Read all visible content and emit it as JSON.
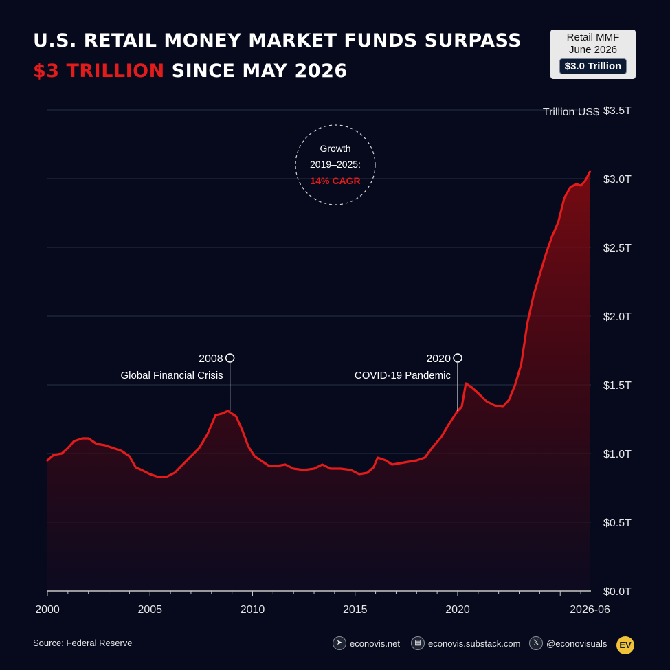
{
  "header": {
    "title_line1": "U.S. RETAIL MONEY MARKET FUNDS SURPASS",
    "title_accent": "$3 TRILLION",
    "title_line2_rest": " SINCE MAY 2026"
  },
  "badge": {
    "line1": "Retail MMF",
    "line2": "June 2026",
    "value": "$3.0 Trillion"
  },
  "growth_callout": {
    "line1": "Growth",
    "line2": "2019–2025:",
    "line3": "14% CAGR"
  },
  "footer": {
    "source": "Source: Federal Reserve",
    "website": "econovis.net",
    "substack": "econovis.substack.com",
    "twitter": "@econovisuals",
    "logo": "EV"
  },
  "colors": {
    "background": "#060a1c",
    "line": "#e21b1b",
    "accent": "#e21b1b"
  },
  "chart_data": {
    "type": "area",
    "ylabel": "Trillion US$",
    "ylim": [
      0,
      3.5
    ],
    "xlim": [
      2000,
      2026.5
    ],
    "yticks": [
      {
        "value": 0,
        "label": "$0.0T"
      },
      {
        "value": 0.5,
        "label": "$0.5T"
      },
      {
        "value": 1.0,
        "label": "$1.0T"
      },
      {
        "value": 1.5,
        "label": "$1.5T"
      },
      {
        "value": 2.0,
        "label": "$2.0T"
      },
      {
        "value": 2.5,
        "label": "$2.5T"
      },
      {
        "value": 3.0,
        "label": "$3.0T"
      },
      {
        "value": 3.5,
        "label": "$3.5T"
      }
    ],
    "xticks": [
      {
        "value": 2000,
        "label": "2000"
      },
      {
        "value": 2005,
        "label": "2005"
      },
      {
        "value": 2010,
        "label": "2010"
      },
      {
        "value": 2015,
        "label": "2015"
      },
      {
        "value": 2020,
        "label": "2020"
      },
      {
        "value": 2026.45,
        "label": "2026-06"
      }
    ],
    "grid": true,
    "annotations": [
      {
        "year_label": "2008",
        "text": "Global Financial Crisis",
        "x": 2008.9,
        "y": 1.31
      },
      {
        "year_label": "2020",
        "text": "COVID-19 Pandemic",
        "x": 2020.0,
        "y": 1.31
      }
    ],
    "series": [
      {
        "values": [
          [
            2000.0,
            0.95
          ],
          [
            2000.3,
            0.99
          ],
          [
            2000.7,
            1.0
          ],
          [
            2001.0,
            1.04
          ],
          [
            2001.3,
            1.09
          ],
          [
            2001.7,
            1.11
          ],
          [
            2002.0,
            1.11
          ],
          [
            2002.4,
            1.07
          ],
          [
            2002.8,
            1.06
          ],
          [
            2003.2,
            1.04
          ],
          [
            2003.6,
            1.02
          ],
          [
            2004.0,
            0.98
          ],
          [
            2004.3,
            0.9
          ],
          [
            2004.6,
            0.88
          ],
          [
            2005.0,
            0.85
          ],
          [
            2005.4,
            0.83
          ],
          [
            2005.8,
            0.83
          ],
          [
            2006.2,
            0.86
          ],
          [
            2006.6,
            0.92
          ],
          [
            2007.0,
            0.98
          ],
          [
            2007.4,
            1.04
          ],
          [
            2007.8,
            1.14
          ],
          [
            2008.2,
            1.28
          ],
          [
            2008.5,
            1.29
          ],
          [
            2008.8,
            1.31
          ],
          [
            2009.2,
            1.27
          ],
          [
            2009.5,
            1.17
          ],
          [
            2009.8,
            1.05
          ],
          [
            2010.1,
            0.98
          ],
          [
            2010.5,
            0.94
          ],
          [
            2010.8,
            0.91
          ],
          [
            2011.2,
            0.91
          ],
          [
            2011.6,
            0.92
          ],
          [
            2012.0,
            0.89
          ],
          [
            2012.5,
            0.88
          ],
          [
            2013.0,
            0.89
          ],
          [
            2013.4,
            0.92
          ],
          [
            2013.8,
            0.89
          ],
          [
            2014.3,
            0.89
          ],
          [
            2014.8,
            0.88
          ],
          [
            2015.2,
            0.85
          ],
          [
            2015.6,
            0.86
          ],
          [
            2015.9,
            0.9
          ],
          [
            2016.1,
            0.97
          ],
          [
            2016.5,
            0.95
          ],
          [
            2016.8,
            0.92
          ],
          [
            2017.2,
            0.93
          ],
          [
            2017.6,
            0.94
          ],
          [
            2018.0,
            0.95
          ],
          [
            2018.4,
            0.97
          ],
          [
            2018.8,
            1.05
          ],
          [
            2019.2,
            1.12
          ],
          [
            2019.6,
            1.22
          ],
          [
            2020.0,
            1.31
          ],
          [
            2020.2,
            1.34
          ],
          [
            2020.4,
            1.51
          ],
          [
            2020.7,
            1.48
          ],
          [
            2021.0,
            1.44
          ],
          [
            2021.4,
            1.38
          ],
          [
            2021.8,
            1.35
          ],
          [
            2022.2,
            1.34
          ],
          [
            2022.5,
            1.39
          ],
          [
            2022.8,
            1.5
          ],
          [
            2023.1,
            1.65
          ],
          [
            2023.4,
            1.95
          ],
          [
            2023.7,
            2.15
          ],
          [
            2024.0,
            2.3
          ],
          [
            2024.3,
            2.45
          ],
          [
            2024.6,
            2.58
          ],
          [
            2024.9,
            2.68
          ],
          [
            2025.2,
            2.86
          ],
          [
            2025.5,
            2.94
          ],
          [
            2025.8,
            2.96
          ],
          [
            2026.0,
            2.95
          ],
          [
            2026.2,
            2.98
          ],
          [
            2026.45,
            3.05
          ]
        ]
      }
    ]
  }
}
